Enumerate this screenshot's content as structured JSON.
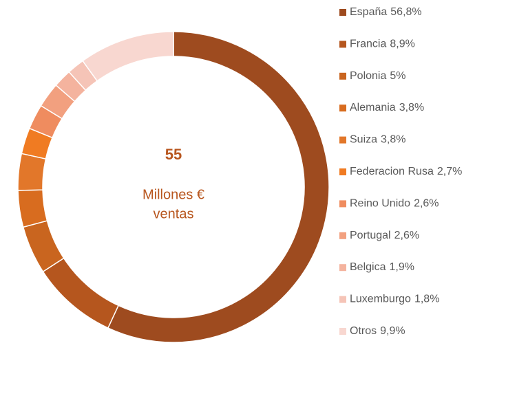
{
  "chart_data": {
    "type": "pie",
    "categories": [
      "España",
      "Francia",
      "Polonia",
      "Alemania",
      "Suiza",
      "Federacion Rusa",
      "Reino Unido",
      "Portugal",
      "Belgica",
      "Luxemburgo",
      "Otros"
    ],
    "values": [
      56.8,
      8.9,
      5,
      3.8,
      3.8,
      2.7,
      2.6,
      2.6,
      1.9,
      1.8,
      9.9
    ],
    "value_labels": [
      "56,8%",
      "8,9%",
      "5%",
      "3,8%",
      "3,8%",
      "2,7%",
      "2,6%",
      "2,6%",
      "1,9%",
      "1,8%",
      "9,9%"
    ],
    "colors": [
      "#9e4b1f",
      "#b5561e",
      "#c9651f",
      "#d86c1f",
      "#e2772a",
      "#f07b22",
      "#ef8c5f",
      "#f2a07f",
      "#f4b39e",
      "#f5c4b7",
      "#f8d7d0"
    ],
    "donut": true,
    "annotations": [
      "55",
      "Millones €",
      "ventas"
    ],
    "legend": "right"
  }
}
